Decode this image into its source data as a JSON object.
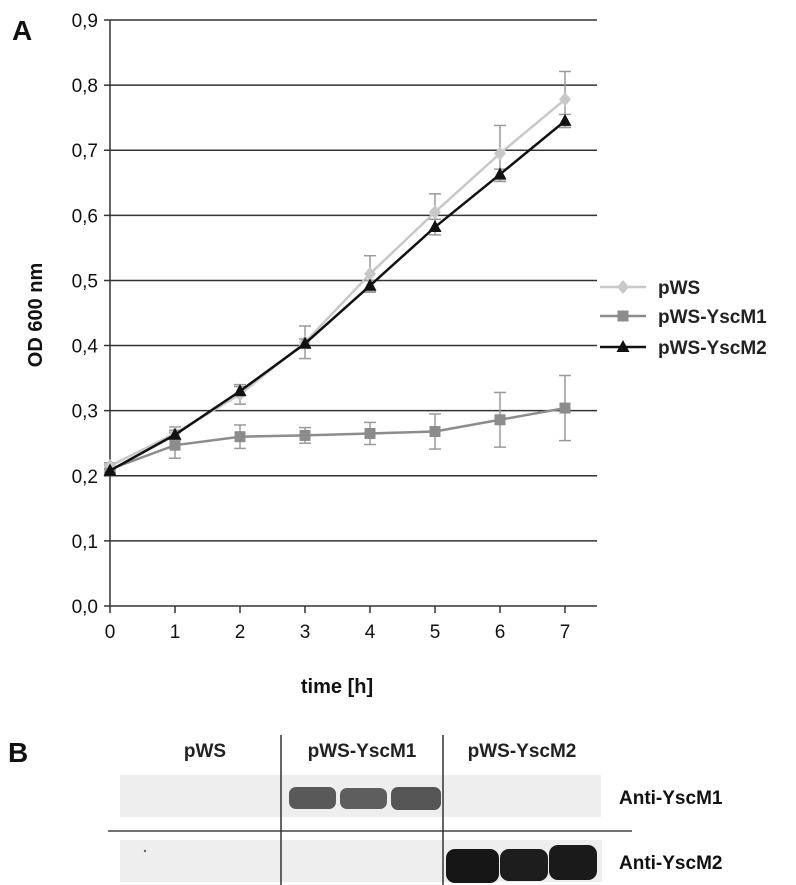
{
  "panel_a": {
    "letter": "A"
  },
  "panel_b": {
    "letter": "B",
    "lanes": [
      "pWS",
      "pWS-YscM1",
      "pWS-YscM2"
    ],
    "antibodies": [
      "Anti-YscM1",
      "Anti-YscM2"
    ],
    "bands": [
      {
        "antibody": 0,
        "lane": 1,
        "count": 3,
        "intensity": "medium"
      },
      {
        "antibody": 1,
        "lane": 2,
        "count": 3,
        "intensity": "strong"
      }
    ]
  },
  "colors": {
    "pWS": "#c8c8c8",
    "pWS-YscM1": "#8c8c8c",
    "pWS-YscM2": "#111111",
    "grid": "#333333"
  },
  "chart_data": {
    "type": "line",
    "title": "",
    "xlabel": "time [h]",
    "ylabel": "OD 600 nm",
    "x": [
      0,
      1,
      2,
      3,
      4,
      5,
      6,
      7
    ],
    "x_ticks": [
      "0",
      "1",
      "2",
      "3",
      "4",
      "5",
      "6",
      "7"
    ],
    "ylim": [
      0,
      0.9
    ],
    "y_ticks": [
      "0,0",
      "0,1",
      "0,2",
      "0,3",
      "0,4",
      "0,5",
      "0,6",
      "0,7",
      "0,8",
      "0,9"
    ],
    "grid": "horizontal",
    "legend_position": "right",
    "series": [
      {
        "name": "pWS",
        "marker": "diamond",
        "values": [
          0.215,
          0.265,
          0.325,
          0.405,
          0.51,
          0.605,
          0.695,
          0.778
        ],
        "errors": [
          0.005,
          0.01,
          0.015,
          0.025,
          0.028,
          0.028,
          0.043,
          0.043
        ]
      },
      {
        "name": "pWS-YscM1",
        "marker": "square",
        "values": [
          0.21,
          0.247,
          0.26,
          0.262,
          0.265,
          0.268,
          0.286,
          0.304
        ],
        "errors": [
          0.005,
          0.02,
          0.018,
          0.012,
          0.017,
          0.027,
          0.042,
          0.05
        ]
      },
      {
        "name": "pWS-YscM2",
        "marker": "triangle",
        "values": [
          0.208,
          0.263,
          0.33,
          0.403,
          0.492,
          0.582,
          0.663,
          0.745
        ],
        "errors": [
          0.003,
          0.007,
          0.007,
          0.007,
          0.008,
          0.012,
          0.008,
          0.01
        ]
      }
    ]
  }
}
